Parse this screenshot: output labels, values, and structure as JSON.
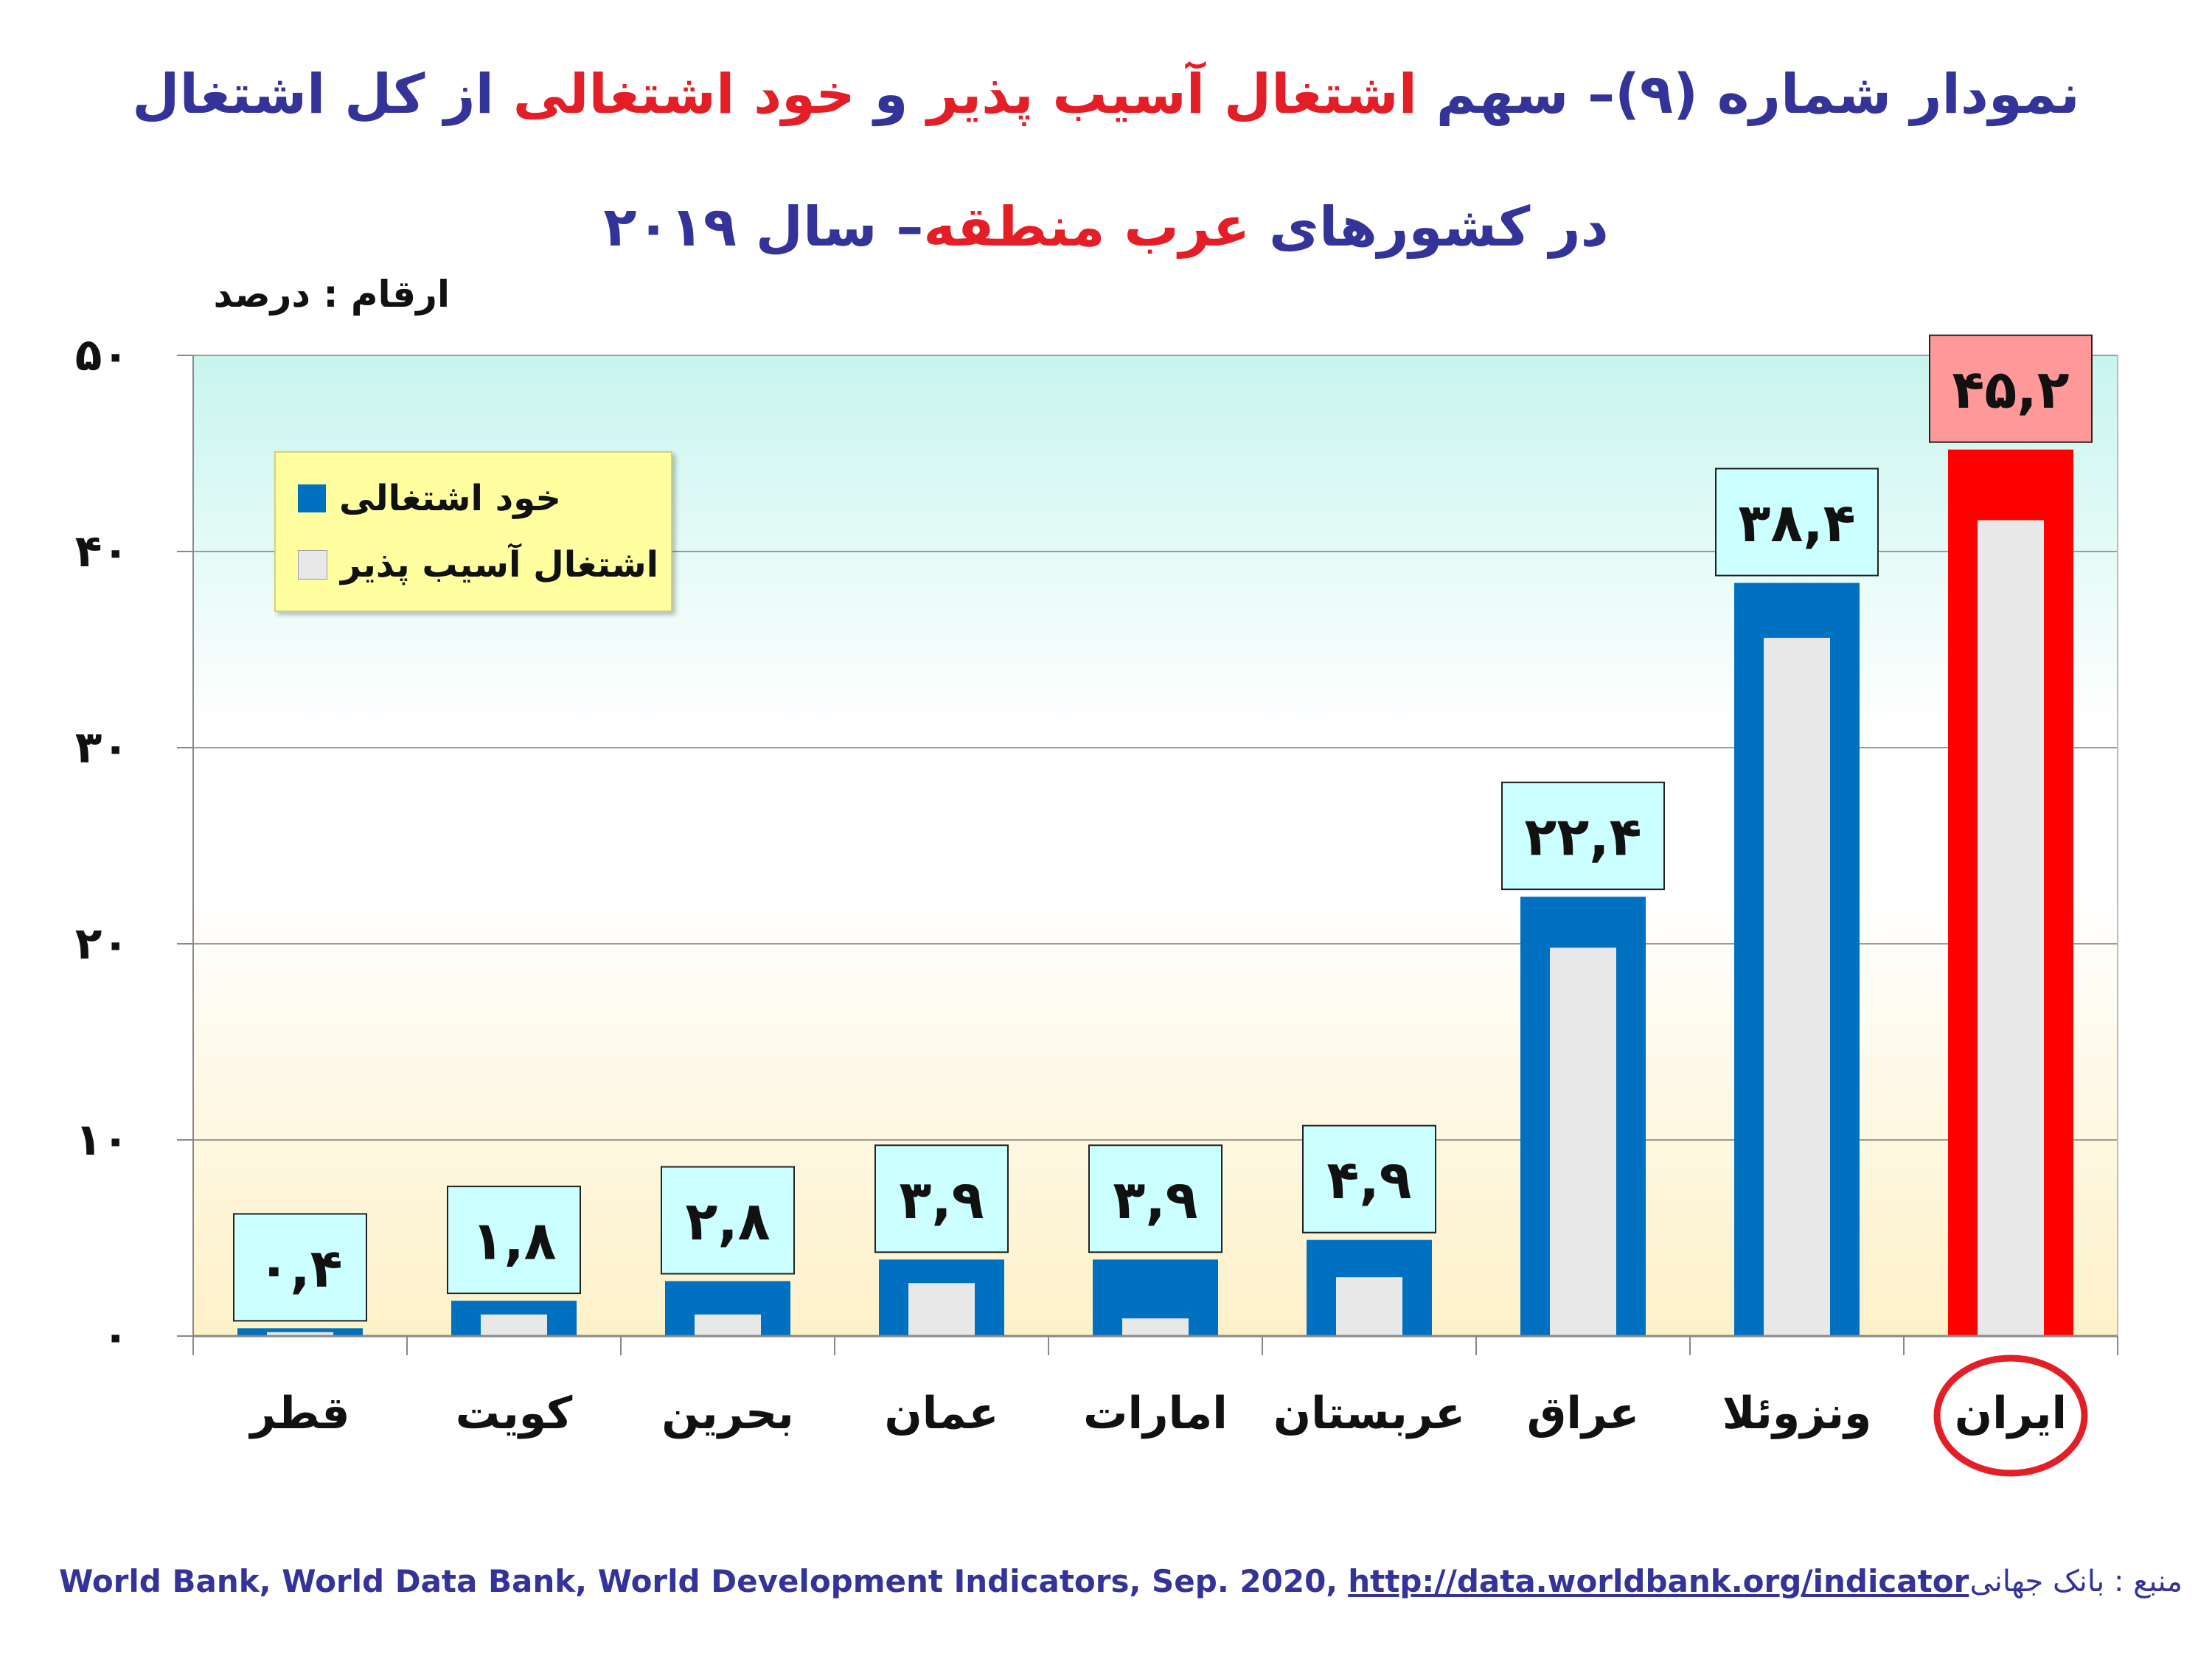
{
  "title": {
    "line1": [
      {
        "text": "نمودار شماره (۹)– سهم ",
        "color": "#333399"
      },
      {
        "text": "اشتغال آسیب پذیر",
        "color": "#e41e26"
      },
      {
        "text": " و ",
        "color": "#333399"
      },
      {
        "text": "خود اشتغالی",
        "color": "#e41e26"
      },
      {
        "text": " از کل اشتغال",
        "color": "#333399"
      }
    ],
    "line2": [
      {
        "text": "در کشورهای ",
        "color": "#333399"
      },
      {
        "text": "عرب منطقه",
        "color": "#e41e26"
      },
      {
        "text": "– سال ۲۰۱۹",
        "color": "#333399"
      }
    ]
  },
  "unit_label": "ارقام : درصد",
  "legend": {
    "self_employment": "خود اشتغالی",
    "vulnerable_employment": "اشتغال آسیب پذیر"
  },
  "source": {
    "text": "World Bank, World Data Bank, World Development Indicators, Sep. 2020,",
    "link": "http://data.worldbank.org/indicator",
    "label_fa": "منبع : بانک جهانی"
  },
  "colors": {
    "self_employment": "#0070c0",
    "self_employment_highlight": "#ff0000",
    "vulnerable_employment": "#e8e8e8",
    "label_box": "#ccffff",
    "label_box_highlight": "#ff9999",
    "title_blue": "#333399",
    "title_red": "#e41e26"
  },
  "chart_data": {
    "type": "bar",
    "categories": [
      "قطر",
      "کویت",
      "بحرین",
      "عمان",
      "امارات",
      "عربستان",
      "عراق",
      "ونزوئلا",
      "ایران"
    ],
    "series": [
      {
        "name": "خود اشتغالی",
        "values": [
          0.4,
          1.8,
          2.8,
          3.9,
          3.9,
          4.9,
          22.4,
          38.4,
          45.2
        ]
      },
      {
        "name": "اشتغال آسیب پذیر",
        "values": [
          0.2,
          1.1,
          1.1,
          2.7,
          0.9,
          3.0,
          19.8,
          35.6,
          41.6
        ]
      }
    ],
    "data_labels": [
      "۰,۴",
      "۱,۸",
      "۲,۸",
      "۳,۹",
      "۳,۹",
      "۴,۹",
      "۲۲,۴",
      "۳۸,۴",
      "۴۵,۲"
    ],
    "ylim": [
      0,
      50
    ],
    "yticks": [
      0,
      10,
      20,
      30,
      40,
      50
    ],
    "ytick_labels": [
      "۰",
      "۱۰",
      "۲۰",
      "۳۰",
      "۴۰",
      "۵۰"
    ],
    "highlight_category": "ایران",
    "grid": true,
    "legend_position": "top-left"
  }
}
